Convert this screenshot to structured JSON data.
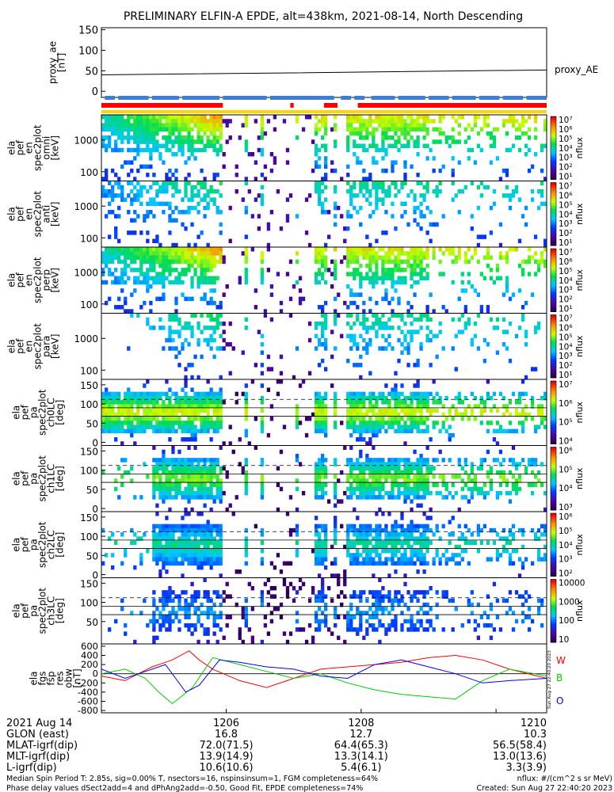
{
  "chart_data": {
    "type": "heatmap",
    "title": "PRELIMINARY ELFIN-A EPDE, alt=438km, 2021-08-14, North Descending",
    "x_ticks": [
      "1206",
      "1208",
      "1210"
    ],
    "x_tick_values": [
      6.0,
      8.0,
      10.0
    ],
    "x_range_minutes": [
      4.15,
      10.75
    ],
    "x_base_label": "2021 Aug 14",
    "ae_panel": {
      "ylabel": "proxy_ae\n[nT]",
      "yticks": [
        "150",
        "100",
        "50",
        "0"
      ],
      "ylim": [
        -15,
        155
      ],
      "series_name": "proxy_AE",
      "line": {
        "x": [
          4.15,
          7.0,
          10.75
        ],
        "y": [
          40,
          45,
          52
        ]
      }
    },
    "flag_bars": {
      "blue_segments": [
        [
          4.2,
          4.35
        ],
        [
          4.4,
          4.85
        ],
        [
          4.9,
          5.3
        ],
        [
          5.35,
          5.9
        ],
        [
          5.95,
          6.6
        ],
        [
          6.65,
          7.6
        ],
        [
          7.7,
          7.85
        ],
        [
          7.9,
          8.05
        ],
        [
          8.15,
          8.5
        ],
        [
          8.55,
          8.95
        ],
        [
          9.0,
          9.3
        ],
        [
          9.35,
          9.7
        ],
        [
          9.75,
          10.05
        ],
        [
          10.1,
          10.4
        ],
        [
          10.45,
          10.75
        ]
      ],
      "red_segments": [
        [
          4.15,
          5.95
        ],
        [
          6.95,
          7.0
        ],
        [
          7.45,
          7.65
        ],
        [
          7.95,
          10.75
        ]
      ],
      "yellow_segments": [
        [
          4.15,
          10.75
        ]
      ]
    },
    "energy_panels": [
      {
        "ylabel": "ela\npef\nen\nspec2plot\nomni\n[keV]",
        "yticks": [
          "1000",
          "100"
        ],
        "cbar_ticks": [
          "10⁷",
          "10⁶",
          "10⁵",
          "10⁴",
          "10³",
          "10²",
          "10¹"
        ],
        "cbar_label": "nflux"
      },
      {
        "ylabel": "ela\npef\nen\nspec2plot\nanti\n[keV]",
        "yticks": [
          "1000",
          "100"
        ],
        "cbar_ticks": [
          "10⁷",
          "10⁶",
          "10⁵",
          "10⁴",
          "10³",
          "10²",
          "10¹"
        ],
        "cbar_label": "nflux"
      },
      {
        "ylabel": "ela\npef\nen\nspec2plot\nperp\n[keV]",
        "yticks": [
          "1000",
          "100"
        ],
        "cbar_ticks": [
          "10⁷",
          "10⁶",
          "10⁵",
          "10⁴",
          "10³",
          "10²",
          "10¹"
        ],
        "cbar_label": "nflux"
      },
      {
        "ylabel": "ela\npef\nen\nspec2plot\npara\n[keV]",
        "yticks": [
          "1000",
          "100"
        ],
        "cbar_ticks": [
          "10⁷",
          "10⁶",
          "10⁵",
          "10⁴",
          "10³",
          "10²",
          "10¹"
        ],
        "cbar_label": "nflux"
      }
    ],
    "pitch_panels": [
      {
        "ylabel": "ela\npef\npa\nspec2plot\nch0LC\n[deg]",
        "yticks": [
          "150",
          "100",
          "50",
          "0"
        ],
        "cbar_ticks": [
          "10⁷",
          "10⁶",
          "10⁵",
          "10⁴"
        ],
        "cbar_label": "nflux"
      },
      {
        "ylabel": "ela\npef\npa\nspec2plot\nch1LC\n[deg]",
        "yticks": [
          "150",
          "100",
          "50",
          "0"
        ],
        "cbar_ticks": [
          "10⁶",
          "10⁵",
          "10⁴",
          "10³"
        ],
        "cbar_label": "nflux"
      },
      {
        "ylabel": "ela\npef\npa\nspec2plot\nch2LC\n[deg]",
        "yticks": [
          "150",
          "100",
          "50",
          "0"
        ],
        "cbar_ticks": [
          "10⁶",
          "10⁵",
          "10⁴",
          "10³",
          "10²"
        ],
        "cbar_label": "nflux"
      },
      {
        "ylabel": "ela\npef\npa\nspec2plot\nch3LC\n[deg]",
        "yticks": [
          "150",
          "100",
          "50"
        ],
        "cbar_ticks": [
          "10000",
          "1000",
          "100",
          "10"
        ],
        "cbar_label": "nflux"
      }
    ],
    "mag_panel": {
      "ylabel": "ela\nfgs\nfsp\nres\nobw\n[nT]",
      "yticks": [
        "600",
        "400",
        "200",
        "0",
        "-200",
        "-400",
        "-600",
        "-800"
      ],
      "ylim": [
        -850,
        650
      ],
      "series": [
        {
          "name": "W",
          "color": "#ff0000",
          "x": [
            4.15,
            4.5,
            4.9,
            5.2,
            5.45,
            5.6,
            5.8,
            6.2,
            6.6,
            7.0,
            7.4,
            7.8,
            8.2,
            8.6,
            9.0,
            9.4,
            9.8,
            10.2,
            10.75
          ],
          "y": [
            -50,
            -150,
            150,
            300,
            500,
            300,
            100,
            -150,
            -300,
            -100,
            100,
            150,
            200,
            250,
            350,
            400,
            300,
            100,
            -100
          ]
        },
        {
          "name": "B",
          "color": "#00cc00",
          "x": [
            4.15,
            4.5,
            4.8,
            5.0,
            5.2,
            5.5,
            5.8,
            6.2,
            6.6,
            7.0,
            7.4,
            7.8,
            8.2,
            8.6,
            9.0,
            9.4,
            9.8,
            10.2,
            10.75
          ],
          "y": [
            0,
            100,
            -100,
            -400,
            -650,
            -300,
            350,
            200,
            50,
            -100,
            0,
            -200,
            -350,
            -450,
            -500,
            -550,
            -150,
            100,
            -50
          ]
        },
        {
          "name": "O",
          "color": "#0000ff",
          "x": [
            4.15,
            4.5,
            4.8,
            5.1,
            5.4,
            5.6,
            5.9,
            6.2,
            6.6,
            7.0,
            7.4,
            7.8,
            8.2,
            8.6,
            9.0,
            9.4,
            9.8,
            10.2,
            10.75
          ],
          "y": [
            100,
            -100,
            50,
            200,
            -400,
            -250,
            300,
            250,
            150,
            100,
            -50,
            -100,
            200,
            300,
            150,
            0,
            -200,
            -150,
            -100
          ]
        }
      ]
    },
    "orbit_table": {
      "rows": [
        {
          "label": "2021 Aug 14",
          "values": [
            "1206",
            "1208",
            "1210"
          ]
        },
        {
          "label": "GLON (east)",
          "values": [
            "16.8",
            "12.7",
            "10.3"
          ]
        },
        {
          "label": "MLAT-igrf(dip)",
          "values": [
            "72.0(71.5)",
            "64.4(65.3)",
            "56.5(58.4)"
          ]
        },
        {
          "label": "MLT-igrf(dip)",
          "values": [
            "13.9(14.9)",
            "13.3(14.1)",
            "13.0(13.6)"
          ]
        },
        {
          "label": "L-igrf(dip)",
          "values": [
            "10.6(10.6)",
            "5.4(6.1)",
            "3.3(3.9)"
          ]
        }
      ]
    },
    "footer": {
      "line1": "Median Spin Period T: 2.85s, sig=0.00% T, nsectors=16, nspinsinsum=1, FGM completeness=64%",
      "line2": "Phase delay values dSect2add=4 and dPhAng2add=-0.50, Good Fit, EPDE completeness=74%",
      "right1": "nflux: #/(cm^2 s sr MeV)",
      "right2": "Created: Sun Aug 27 22:40:20 2023"
    },
    "side_stamp": "Sun Aug 27 22:40:20 2023"
  }
}
